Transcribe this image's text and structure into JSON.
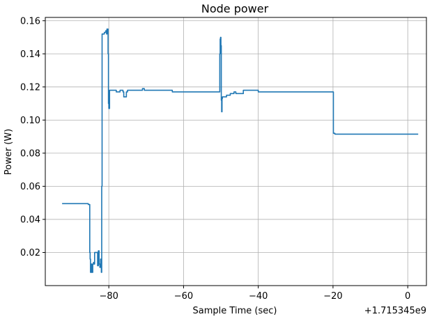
{
  "chart_data": {
    "type": "line",
    "title": "Node power",
    "xlabel": "Sample Time (sec)",
    "ylabel": "Power (W)",
    "offset_label": "+1.715345e9",
    "xlim": [
      -97,
      5
    ],
    "ylim": [
      0.0,
      0.162
    ],
    "xticks": [
      -80,
      -60,
      -40,
      -20,
      0
    ],
    "yticks": [
      0.02,
      0.04,
      0.06,
      0.08,
      0.1,
      0.12,
      0.14,
      0.16
    ],
    "xtick_labels": [
      "−80",
      "−60",
      "−40",
      "−20",
      "0"
    ],
    "ytick_labels": [
      "0.02",
      "0.04",
      "0.06",
      "0.08",
      "0.10",
      "0.12",
      "0.14",
      "0.16"
    ],
    "grid": true,
    "line_color": "#1f77b4",
    "series": [
      {
        "x": [
          -92.5,
          -85.5,
          -85.3,
          -85.1,
          -85.0,
          -84.9,
          -84.7,
          -84.5,
          -84.3,
          -84.1,
          -84.0,
          -83.8,
          -83.5,
          -83.3,
          -83.0,
          -82.8,
          -82.6,
          -82.4,
          -82.2,
          -82.0,
          -81.9,
          -81.8,
          -81.7,
          -81.5,
          -81.2,
          -81.0,
          -80.8,
          -80.6,
          -80.5,
          -80.4,
          -80.3,
          -80.2,
          -80.1,
          -80.0,
          -79.8,
          -79.0,
          -78.0,
          -77.0,
          -76.5,
          -76.2,
          -76.0,
          -75.8,
          -75.5,
          -75.3,
          -75.0,
          -74.5,
          -73.0,
          -72.0,
          -71.0,
          -70.5,
          -70.0,
          -69.5,
          -68.0,
          -66.0,
          -64.0,
          -63.0,
          -62.5,
          -62.0,
          -61.0,
          -60.0,
          -58.0,
          -56.0,
          -54.0,
          -52.0,
          -51.0,
          -50.5,
          -50.3,
          -50.2,
          -50.1,
          -50.0,
          -49.9,
          -49.8,
          -49.7,
          -49.6,
          -49.5,
          -49.0,
          -48.5,
          -48.0,
          -47.5,
          -47.0,
          -46.5,
          -46.0,
          -45.0,
          -44.5,
          -44.0,
          -43.5,
          -42.0,
          -40.0,
          -38.0,
          -36.0,
          -34.0,
          -32.0,
          -30.0,
          -28.0,
          -26.0,
          -24.0,
          -22.0,
          -20.2,
          -20.0,
          -19.9,
          -19.5,
          -15.0,
          -10.0,
          -5.0,
          0.0,
          2.8
        ],
        "y": [
          0.0495,
          0.049,
          0.049,
          0.02,
          0.016,
          0.008,
          0.013,
          0.008,
          0.013,
          0.014,
          0.013,
          0.02,
          0.02,
          0.02,
          0.012,
          0.021,
          0.013,
          0.011,
          0.016,
          0.008,
          0.06,
          0.152,
          0.152,
          0.152,
          0.153,
          0.153,
          0.154,
          0.152,
          0.155,
          0.153,
          0.155,
          0.14,
          0.11,
          0.107,
          0.118,
          0.118,
          0.117,
          0.118,
          0.118,
          0.117,
          0.114,
          0.114,
          0.114,
          0.117,
          0.118,
          0.118,
          0.118,
          0.118,
          0.119,
          0.118,
          0.118,
          0.118,
          0.118,
          0.118,
          0.118,
          0.117,
          0.117,
          0.117,
          0.117,
          0.117,
          0.117,
          0.117,
          0.117,
          0.117,
          0.117,
          0.117,
          0.14,
          0.149,
          0.15,
          0.145,
          0.112,
          0.105,
          0.113,
          0.114,
          0.114,
          0.114,
          0.115,
          0.115,
          0.116,
          0.116,
          0.117,
          0.116,
          0.116,
          0.116,
          0.118,
          0.118,
          0.118,
          0.117,
          0.117,
          0.117,
          0.117,
          0.117,
          0.117,
          0.117,
          0.117,
          0.117,
          0.117,
          0.117,
          0.117,
          0.092,
          0.0915,
          0.0915,
          0.0915,
          0.0915,
          0.0915,
          0.0915
        ]
      }
    ]
  }
}
